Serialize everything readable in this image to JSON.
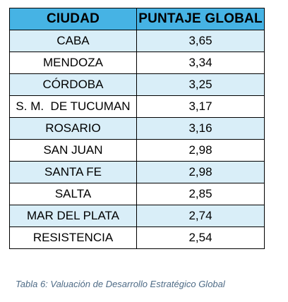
{
  "table": {
    "headers": [
      "CIUDAD",
      "PUNTAJE GLOBAL"
    ],
    "rows": [
      {
        "city": "CABA",
        "score": "3,65"
      },
      {
        "city": "MENDOZA",
        "score": "3,34"
      },
      {
        "city": "CÓRDOBA",
        "score": "3,25"
      },
      {
        "city": "S. M.  DE TUCUMAN",
        "score": "3,17"
      },
      {
        "city": "ROSARIO",
        "score": "3,16"
      },
      {
        "city": "SAN JUAN",
        "score": "2,98"
      },
      {
        "city": "SANTA FE",
        "score": "2,98"
      },
      {
        "city": "SALTA",
        "score": "2,85"
      },
      {
        "city": "MAR DEL PLATA",
        "score": "2,74"
      },
      {
        "city": "RESISTENCIA",
        "score": "2,54"
      }
    ]
  },
  "caption": "Tabla 6: Valuación de Desarrollo Estratégico Global",
  "colors": {
    "header_bg": "#46b3e4",
    "stripe_bg": "#d9eef8",
    "caption_text": "#4e6b86"
  }
}
